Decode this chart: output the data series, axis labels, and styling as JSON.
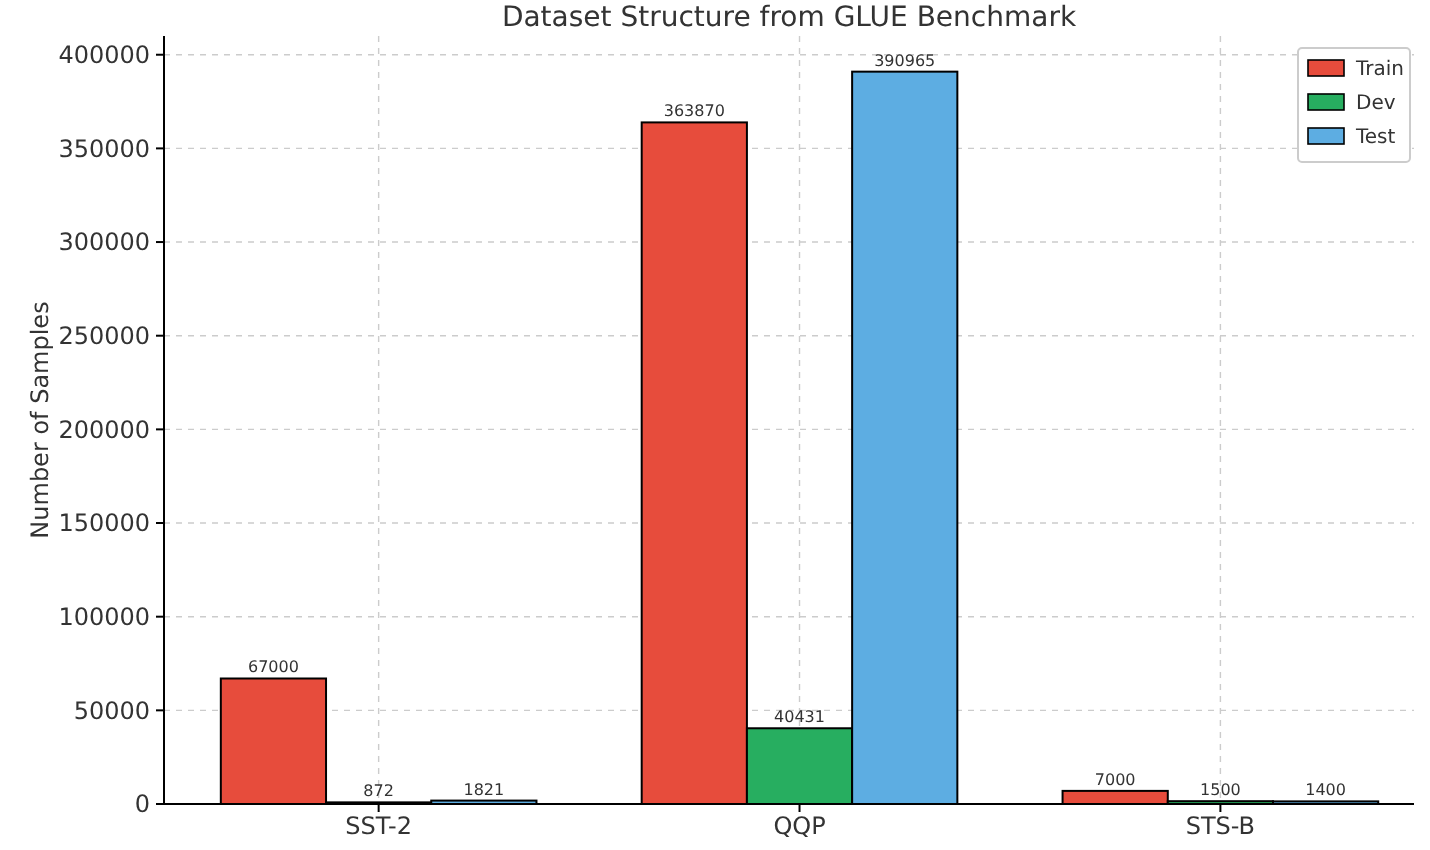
{
  "chart_data": {
    "type": "bar",
    "title": "Dataset Structure from GLUE Benchmark",
    "ylabel": "Number of Samples",
    "categories": [
      "SST-2",
      "QQP",
      "STS-B"
    ],
    "series": [
      {
        "name": "Train",
        "color": "#e74c3c",
        "values": [
          67000,
          363870,
          7000
        ]
      },
      {
        "name": "Dev",
        "color": "#27ae60",
        "values": [
          872,
          40431,
          1500
        ]
      },
      {
        "name": "Test",
        "color": "#5dade2",
        "values": [
          1821,
          390965,
          1400
        ]
      }
    ],
    "ylim": [
      0,
      410000
    ],
    "yticks": [
      0,
      50000,
      100000,
      150000,
      200000,
      250000,
      300000,
      350000,
      400000
    ],
    "grid": true,
    "legend": "top right",
    "data_labels": true
  }
}
